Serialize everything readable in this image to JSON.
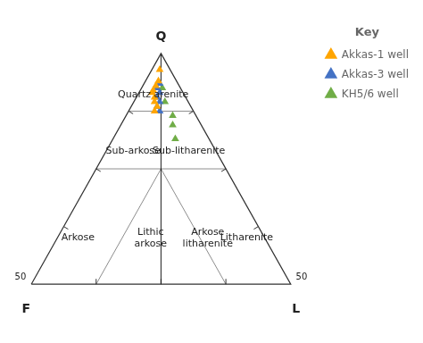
{
  "chart_data": {
    "type": "ternary",
    "apex_labels": [
      "Q",
      "F",
      "L"
    ],
    "region_labels": [
      {
        "text": "Quartz arenite",
        "q": 0.82,
        "f": 0.12,
        "l": 0.06
      },
      {
        "text": "Sub-arkose",
        "q": 0.575,
        "f": 0.32,
        "l": 0.105
      },
      {
        "text": "Sub-litharenite",
        "q": 0.575,
        "f": 0.105,
        "l": 0.32
      },
      {
        "text": "Arkose",
        "q": 0.2,
        "f": 0.72,
        "l": 0.08
      },
      {
        "text": "Lithic\narkose",
        "q": 0.2,
        "f": 0.44,
        "l": 0.36
      },
      {
        "text": "Arkose\nlitharenite",
        "q": 0.2,
        "f": 0.22,
        "l": 0.58
      },
      {
        "text": "Litharenite",
        "q": 0.2,
        "f": 0.07,
        "l": 0.73
      }
    ],
    "annotations": [
      "50",
      "50"
    ],
    "boundaries": [
      [
        [
          0.75,
          0.25,
          0.0
        ],
        [
          0.75,
          0.0,
          0.25
        ]
      ],
      [
        [
          0.5,
          0.5,
          0.0
        ],
        [
          0.5,
          0.0,
          0.5
        ]
      ],
      [
        [
          1.0,
          0.0,
          0.0
        ],
        [
          0.0,
          0.5,
          0.5
        ]
      ],
      [
        [
          0.0,
          0.25,
          0.75
        ],
        [
          0.5,
          0.25,
          0.25
        ]
      ],
      [
        [
          0.0,
          0.75,
          0.25
        ],
        [
          0.5,
          0.25,
          0.25
        ]
      ]
    ],
    "ticks": [
      0.25,
      0.5,
      0.75
    ],
    "series": [
      {
        "name": "Akkas-1 well",
        "color": "#FFA500",
        "marker": "triangle",
        "points": [
          [
            0.93,
            0.04,
            0.03
          ],
          [
            0.88,
            0.07,
            0.05
          ],
          [
            0.86,
            0.09,
            0.05
          ],
          [
            0.84,
            0.11,
            0.05
          ],
          [
            0.83,
            0.12,
            0.05
          ],
          [
            0.81,
            0.12,
            0.07
          ],
          [
            0.79,
            0.13,
            0.08
          ],
          [
            0.77,
            0.13,
            0.1
          ],
          [
            0.75,
            0.15,
            0.1
          ]
        ]
      },
      {
        "name": "Akkas-3 well",
        "color": "#4472C4",
        "marker": "triangle",
        "points": [
          [
            0.87,
            0.07,
            0.06
          ],
          [
            0.85,
            0.09,
            0.06
          ],
          [
            0.83,
            0.09,
            0.08
          ],
          [
            0.81,
            0.11,
            0.08
          ],
          [
            0.79,
            0.11,
            0.1
          ],
          [
            0.77,
            0.13,
            0.1
          ],
          [
            0.75,
            0.13,
            0.12
          ]
        ]
      },
      {
        "name": "KH5/6 well",
        "color": "#70AD47",
        "marker": "triangle",
        "points": [
          [
            0.85,
            0.07,
            0.08
          ],
          [
            0.79,
            0.09,
            0.12
          ],
          [
            0.73,
            0.09,
            0.18
          ],
          [
            0.69,
            0.11,
            0.2
          ],
          [
            0.63,
            0.13,
            0.24
          ]
        ]
      }
    ],
    "legend_title": "Key",
    "legend": "upper right",
    "grid": false
  }
}
